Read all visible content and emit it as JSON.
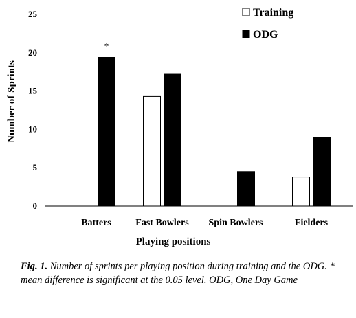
{
  "chart_data": {
    "type": "bar",
    "categories": [
      "Batters",
      "Fast Bowlers",
      "Spin Bowlers",
      "Fielders"
    ],
    "series": [
      {
        "name": "Training",
        "values": [
          0,
          14.3,
          0,
          3.8
        ],
        "color": "#ffffff"
      },
      {
        "name": "ODG",
        "values": [
          19.4,
          17.2,
          4.5,
          9.0
        ],
        "color": "#000000"
      }
    ],
    "xlabel": "Playing positions",
    "ylabel": "Number  of Sprints",
    "ylim": [
      0,
      25
    ],
    "yticks": [
      0,
      5,
      10,
      15,
      20,
      25
    ],
    "grid": false,
    "legend_position": "top-right",
    "annotations": [
      {
        "text": "*",
        "category": "Batters",
        "series": "ODG"
      }
    ]
  },
  "caption": {
    "lead": "Fig. 1.",
    "text": "Number of sprints per playing position during  training and the ODG. * mean difference is significant at the 0.05 level. ODG, One Day Game"
  }
}
